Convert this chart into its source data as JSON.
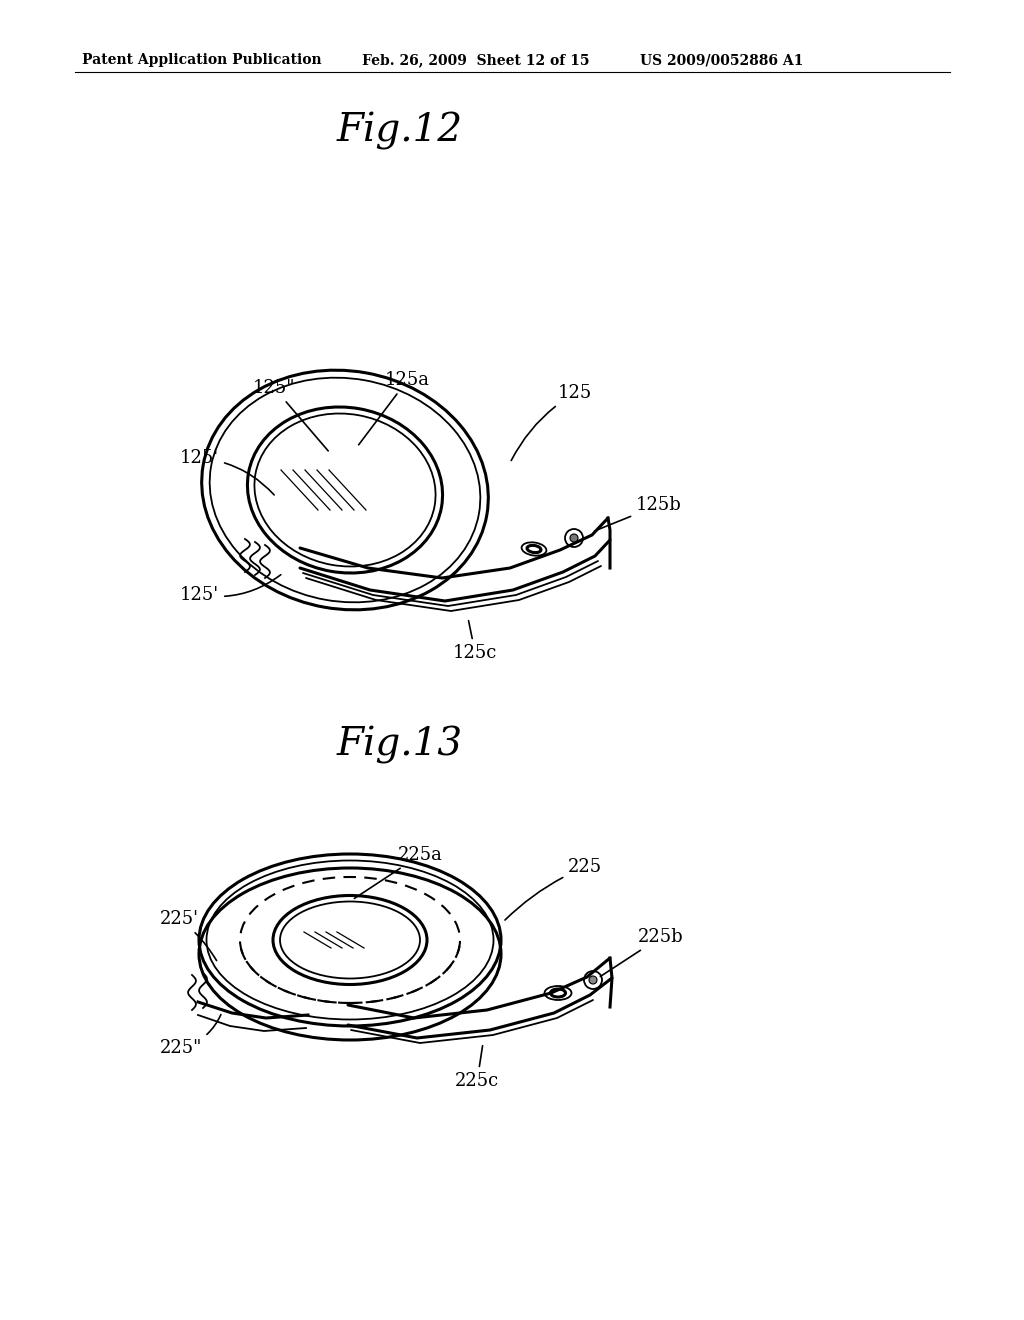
{
  "background_color": "#ffffff",
  "header_left": "Patent Application Publication",
  "header_mid": "Feb. 26, 2009  Sheet 12 of 15",
  "header_right": "US 2009/0052886 A1",
  "fig12_title": "Fig.12",
  "fig13_title": "Fig.13",
  "text_color": "#000000",
  "line_color": "#000000",
  "lw_main": 2.2,
  "lw_thin": 1.3,
  "annot_fontsize": 13,
  "title_fontsize": 28,
  "header_fontsize": 10
}
